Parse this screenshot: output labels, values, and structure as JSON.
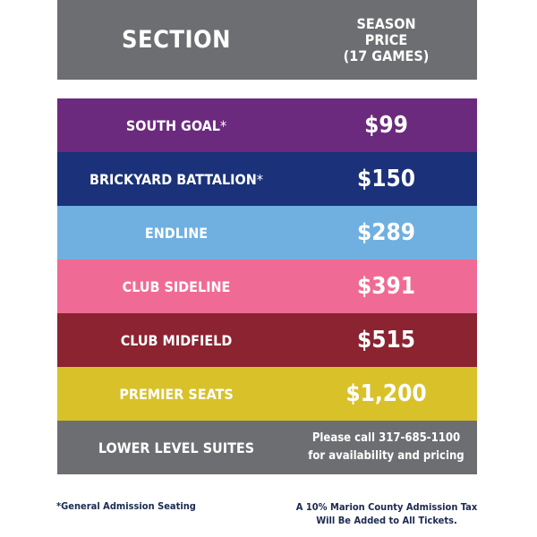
{
  "header": {
    "section_label": "SECTION",
    "price_label": "SEASON\nPRICE\n(17 GAMES)",
    "background": "#6d6e71"
  },
  "rows": [
    {
      "name": "SOUTH GOAL",
      "star": "*",
      "price": "$99",
      "color": "#6b2a7d"
    },
    {
      "name": "BRICKYARD BATTALION",
      "star": "*",
      "price": "$150",
      "color": "#1b3179"
    },
    {
      "name": "ENDLINE",
      "star": "",
      "price": "$289",
      "color": "#6fb0e0"
    },
    {
      "name": "CLUB SIDELINE",
      "star": "",
      "price": "$391",
      "color": "#ef6b95"
    },
    {
      "name": "CLUB MIDFIELD",
      "star": "",
      "price": "$515",
      "color": "#8b2331"
    },
    {
      "name": "PREMIER SEATS",
      "star": "",
      "price": "$1,200",
      "color": "#d9c12a"
    }
  ],
  "suites": {
    "name": "LOWER LEVEL SUITES",
    "note": "Please call 317-685-1100\nfor availability and pricing",
    "color": "#6d6e71"
  },
  "footer": {
    "general_admission": "*General Admission Seating",
    "tax_note": "A 10% Marion County Admission Tax\nWill Be Added to All Tickets.",
    "text_color": "#1b2a52"
  }
}
